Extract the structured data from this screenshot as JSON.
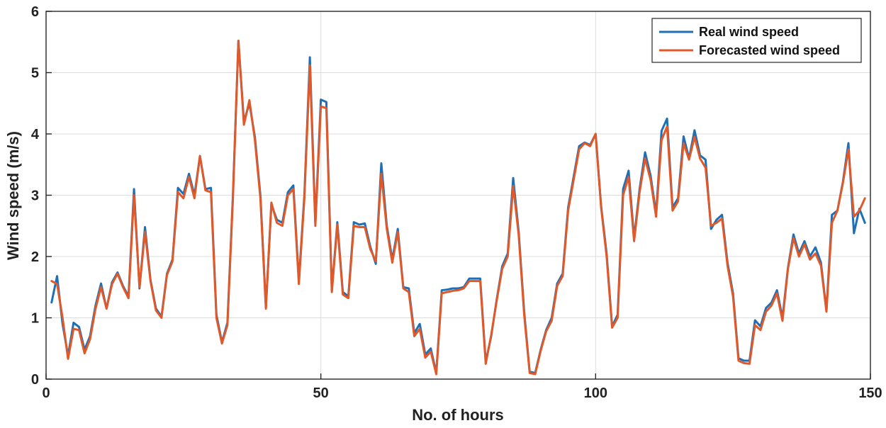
{
  "chart_data": {
    "type": "line",
    "title": "",
    "xlabel": "No. of hours",
    "ylabel": "Wind speed (m/s)",
    "xlim": [
      0,
      150
    ],
    "ylim": [
      0,
      6
    ],
    "xticks": [
      0,
      50,
      100,
      150
    ],
    "yticks": [
      0,
      1,
      2,
      3,
      4,
      5,
      6
    ],
    "grid": true,
    "legend_position": "top-right",
    "series": [
      {
        "name": "Real wind speed",
        "color": "#1f6fb4",
        "x": [
          1,
          2,
          3,
          4,
          5,
          6,
          7,
          8,
          9,
          10,
          11,
          12,
          13,
          14,
          15,
          16,
          17,
          18,
          19,
          20,
          21,
          22,
          23,
          24,
          25,
          26,
          27,
          28,
          29,
          30,
          31,
          32,
          33,
          34,
          35,
          36,
          37,
          38,
          39,
          40,
          41,
          42,
          43,
          44,
          45,
          46,
          47,
          48,
          49,
          50,
          51,
          52,
          53,
          54,
          55,
          56,
          57,
          58,
          59,
          60,
          61,
          62,
          63,
          64,
          65,
          66,
          67,
          68,
          69,
          70,
          71,
          72,
          73,
          74,
          75,
          76,
          77,
          78,
          79,
          80,
          81,
          82,
          83,
          84,
          85,
          86,
          87,
          88,
          89,
          90,
          91,
          92,
          93,
          94,
          95,
          96,
          97,
          98,
          99,
          100,
          101,
          102,
          103,
          104,
          105,
          106,
          107,
          108,
          109,
          110,
          111,
          112,
          113,
          114,
          115,
          116,
          117,
          118,
          119,
          120,
          121,
          122,
          123,
          124,
          125,
          126,
          127,
          128,
          129,
          130,
          131,
          132,
          133,
          134,
          135,
          136,
          137,
          138,
          139,
          140,
          141,
          142,
          143,
          144,
          145,
          146,
          147,
          148,
          149
        ],
        "values": [
          1.25,
          1.68,
          0.9,
          0.38,
          0.92,
          0.85,
          0.48,
          0.7,
          1.2,
          1.56,
          1.15,
          1.58,
          1.74,
          1.52,
          1.35,
          3.1,
          1.48,
          2.48,
          1.62,
          1.15,
          1.02,
          1.72,
          1.95,
          3.12,
          3.02,
          3.35,
          3.0,
          3.64,
          3.1,
          3.12,
          1.05,
          0.6,
          0.92,
          3.0,
          5.52,
          4.2,
          4.5,
          3.95,
          3.0,
          1.18,
          2.85,
          2.6,
          2.55,
          3.05,
          3.16,
          1.6,
          3.0,
          5.25,
          2.55,
          4.56,
          4.52,
          1.45,
          2.56,
          1.42,
          1.35,
          2.56,
          2.52,
          2.54,
          2.16,
          1.88,
          3.52,
          2.5,
          1.95,
          2.45,
          1.5,
          1.48,
          0.75,
          0.9,
          0.4,
          0.5,
          0.1,
          1.45,
          1.46,
          1.48,
          1.48,
          1.5,
          1.64,
          1.64,
          1.64,
          0.28,
          0.7,
          1.3,
          1.84,
          2.05,
          3.28,
          2.4,
          1.1,
          0.12,
          0.1,
          0.48,
          0.8,
          1.0,
          1.56,
          1.72,
          2.8,
          3.3,
          3.8,
          3.86,
          3.82,
          4.0,
          2.82,
          2.05,
          0.86,
          1.05,
          3.1,
          3.4,
          2.3,
          3.1,
          3.7,
          3.32,
          2.7,
          4.05,
          4.25,
          2.8,
          2.95,
          3.96,
          3.6,
          4.06,
          3.65,
          3.58,
          2.45,
          2.6,
          2.68,
          1.9,
          1.4,
          0.34,
          0.3,
          0.3,
          0.96,
          0.86,
          1.16,
          1.25,
          1.45,
          1.0,
          1.82,
          2.36,
          2.05,
          2.25,
          2.0,
          2.15,
          1.9,
          1.12,
          2.68,
          2.75,
          3.22,
          3.85,
          2.38,
          2.78,
          2.55
        ]
      },
      {
        "name": "Forecasted wind speed",
        "color": "#e0592a",
        "x": [
          1,
          2,
          3,
          4,
          5,
          6,
          7,
          8,
          9,
          10,
          11,
          12,
          13,
          14,
          15,
          16,
          17,
          18,
          19,
          20,
          21,
          22,
          23,
          24,
          25,
          26,
          27,
          28,
          29,
          30,
          31,
          32,
          33,
          34,
          35,
          36,
          37,
          38,
          39,
          40,
          41,
          42,
          43,
          44,
          45,
          46,
          47,
          48,
          49,
          50,
          51,
          52,
          53,
          54,
          55,
          56,
          57,
          58,
          59,
          60,
          61,
          62,
          63,
          64,
          65,
          66,
          67,
          68,
          69,
          70,
          71,
          72,
          73,
          74,
          75,
          76,
          77,
          78,
          79,
          80,
          81,
          82,
          83,
          84,
          85,
          86,
          87,
          88,
          89,
          90,
          91,
          92,
          93,
          94,
          95,
          96,
          97,
          98,
          99,
          100,
          101,
          102,
          103,
          104,
          105,
          106,
          107,
          108,
          109,
          110,
          111,
          112,
          113,
          114,
          115,
          116,
          117,
          118,
          119,
          120,
          121,
          122,
          123,
          124,
          125,
          126,
          127,
          128,
          129,
          130,
          131,
          132,
          133,
          134,
          135,
          136,
          137,
          138,
          139,
          140,
          141,
          142,
          143,
          144,
          145,
          146,
          147,
          148,
          149
        ],
        "values": [
          1.6,
          1.55,
          1.0,
          0.33,
          0.82,
          0.8,
          0.42,
          0.65,
          1.15,
          1.5,
          1.15,
          1.55,
          1.72,
          1.5,
          1.32,
          3.0,
          1.5,
          2.4,
          1.6,
          1.12,
          1.0,
          1.7,
          1.92,
          3.05,
          2.95,
          3.3,
          2.95,
          3.64,
          3.08,
          3.05,
          1.0,
          0.58,
          0.88,
          2.95,
          5.52,
          4.15,
          4.55,
          3.9,
          2.95,
          1.15,
          2.88,
          2.55,
          2.5,
          3.0,
          3.1,
          1.55,
          2.95,
          5.12,
          2.5,
          4.45,
          4.42,
          1.42,
          2.52,
          1.38,
          1.32,
          2.5,
          2.48,
          2.48,
          2.12,
          1.92,
          3.35,
          2.45,
          1.9,
          2.4,
          1.48,
          1.42,
          0.7,
          0.82,
          0.35,
          0.45,
          0.08,
          1.4,
          1.42,
          1.44,
          1.45,
          1.48,
          1.6,
          1.6,
          1.6,
          0.25,
          0.72,
          1.28,
          1.8,
          2.0,
          3.15,
          2.35,
          1.05,
          0.1,
          0.08,
          0.46,
          0.78,
          0.95,
          1.52,
          1.68,
          2.75,
          3.25,
          3.75,
          3.85,
          3.8,
          4.0,
          2.8,
          2.0,
          0.84,
          1.0,
          3.0,
          3.3,
          2.25,
          3.05,
          3.6,
          3.25,
          2.65,
          3.9,
          4.12,
          2.75,
          2.9,
          3.85,
          3.58,
          3.95,
          3.6,
          3.45,
          2.5,
          2.55,
          2.62,
          1.85,
          1.35,
          0.3,
          0.26,
          0.25,
          0.88,
          0.8,
          1.1,
          1.2,
          1.4,
          0.95,
          1.8,
          2.3,
          2.0,
          2.2,
          1.95,
          2.05,
          1.85,
          1.1,
          2.55,
          2.75,
          3.2,
          3.75,
          2.65,
          2.75,
          2.95
        ]
      }
    ]
  }
}
